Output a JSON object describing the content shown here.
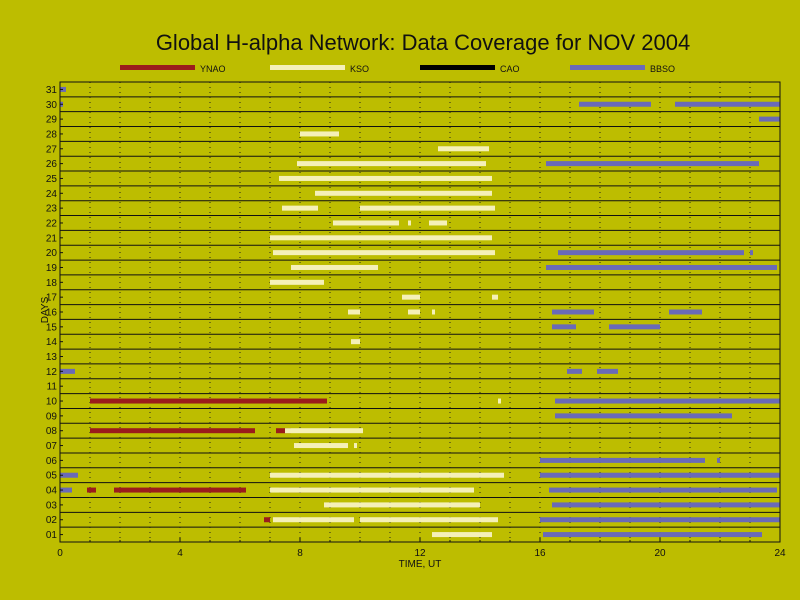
{
  "chart_data": {
    "type": "bar",
    "title": "Global H-alpha Network: Data Coverage for NOV 2004",
    "xlabel": "TIME, UT",
    "ylabel": "DAYS",
    "xlim": [
      0,
      24
    ],
    "ylim": [
      0.5,
      31.5
    ],
    "x_ticks": [
      0,
      4,
      8,
      12,
      16,
      20,
      24
    ],
    "y_ticks": [
      "01",
      "02",
      "03",
      "04",
      "05",
      "06",
      "07",
      "08",
      "09",
      "10",
      "11",
      "12",
      "13",
      "14",
      "15",
      "16",
      "17",
      "18",
      "19",
      "20",
      "21",
      "22",
      "23",
      "24",
      "25",
      "26",
      "27",
      "28",
      "29",
      "30",
      "31"
    ],
    "legend_position": "top",
    "grid": true,
    "series": [
      {
        "name": "YNAO",
        "color": "#9b1c1c",
        "intervals": [
          {
            "day": 2,
            "start": 6.8,
            "end": 7.0
          },
          {
            "day": 4,
            "start": 0.9,
            "end": 1.2
          },
          {
            "day": 4,
            "start": 1.8,
            "end": 6.2
          },
          {
            "day": 4,
            "start": 7.3,
            "end": 8.9
          },
          {
            "day": 8,
            "start": 1.0,
            "end": 6.5
          },
          {
            "day": 8,
            "start": 7.2,
            "end": 7.7
          },
          {
            "day": 10,
            "start": 1.0,
            "end": 8.9
          }
        ]
      },
      {
        "name": "KSO",
        "color": "#f5f0b8",
        "intervals": [
          {
            "day": 1,
            "start": 12.4,
            "end": 14.4
          },
          {
            "day": 2,
            "start": 7.1,
            "end": 9.8
          },
          {
            "day": 2,
            "start": 10.0,
            "end": 14.6
          },
          {
            "day": 3,
            "start": 8.8,
            "end": 14.0
          },
          {
            "day": 4,
            "start": 7.0,
            "end": 13.8
          },
          {
            "day": 5,
            "start": 7.0,
            "end": 14.8
          },
          {
            "day": 7,
            "start": 7.8,
            "end": 9.6
          },
          {
            "day": 7,
            "start": 9.8,
            "end": 9.9
          },
          {
            "day": 8,
            "start": 7.5,
            "end": 10.1
          },
          {
            "day": 10,
            "start": 14.6,
            "end": 14.7
          },
          {
            "day": 14,
            "start": 9.7,
            "end": 10.0
          },
          {
            "day": 16,
            "start": 9.6,
            "end": 10.0
          },
          {
            "day": 16,
            "start": 11.6,
            "end": 12.0
          },
          {
            "day": 16,
            "start": 12.4,
            "end": 12.5
          },
          {
            "day": 17,
            "start": 11.4,
            "end": 12.0
          },
          {
            "day": 17,
            "start": 14.4,
            "end": 14.6
          },
          {
            "day": 18,
            "start": 7.0,
            "end": 8.8
          },
          {
            "day": 19,
            "start": 7.7,
            "end": 10.6
          },
          {
            "day": 20,
            "start": 7.1,
            "end": 14.5
          },
          {
            "day": 21,
            "start": 7.0,
            "end": 14.4
          },
          {
            "day": 22,
            "start": 9.1,
            "end": 11.3
          },
          {
            "day": 22,
            "start": 11.6,
            "end": 11.7
          },
          {
            "day": 22,
            "start": 12.3,
            "end": 12.9
          },
          {
            "day": 23,
            "start": 7.4,
            "end": 8.6
          },
          {
            "day": 23,
            "start": 10.0,
            "end": 14.5
          },
          {
            "day": 24,
            "start": 8.5,
            "end": 14.4
          },
          {
            "day": 25,
            "start": 7.3,
            "end": 14.4
          },
          {
            "day": 26,
            "start": 7.9,
            "end": 14.2
          },
          {
            "day": 27,
            "start": 12.6,
            "end": 14.3
          },
          {
            "day": 28,
            "start": 8.0,
            "end": 9.3
          }
        ]
      },
      {
        "name": "CAO",
        "color": "#000000",
        "intervals": []
      },
      {
        "name": "BBSO",
        "color": "#6a6ab8",
        "intervals": [
          {
            "day": 1,
            "start": 16.1,
            "end": 23.4
          },
          {
            "day": 2,
            "start": 16.0,
            "end": 24.0
          },
          {
            "day": 3,
            "start": 16.4,
            "end": 24.0
          },
          {
            "day": 4,
            "start": 0.0,
            "end": 0.4
          },
          {
            "day": 4,
            "start": 16.3,
            "end": 23.9
          },
          {
            "day": 5,
            "start": 0.0,
            "end": 0.6
          },
          {
            "day": 5,
            "start": 16.0,
            "end": 24.0
          },
          {
            "day": 6,
            "start": 16.0,
            "end": 21.5
          },
          {
            "day": 6,
            "start": 21.9,
            "end": 22.0
          },
          {
            "day": 9,
            "start": 16.5,
            "end": 22.4
          },
          {
            "day": 10,
            "start": 16.5,
            "end": 24.0
          },
          {
            "day": 12,
            "start": 0.0,
            "end": 0.5
          },
          {
            "day": 12,
            "start": 16.9,
            "end": 17.4
          },
          {
            "day": 12,
            "start": 17.9,
            "end": 18.6
          },
          {
            "day": 15,
            "start": 16.4,
            "end": 17.2
          },
          {
            "day": 15,
            "start": 18.3,
            "end": 20.0
          },
          {
            "day": 16,
            "start": 16.4,
            "end": 17.8
          },
          {
            "day": 16,
            "start": 20.3,
            "end": 21.4
          },
          {
            "day": 19,
            "start": 16.2,
            "end": 23.9
          },
          {
            "day": 20,
            "start": 16.6,
            "end": 22.8
          },
          {
            "day": 20,
            "start": 23.0,
            "end": 23.1
          },
          {
            "day": 26,
            "start": 16.2,
            "end": 23.3
          },
          {
            "day": 29,
            "start": 23.3,
            "end": 24.0
          },
          {
            "day": 30,
            "start": 0.0,
            "end": 0.1
          },
          {
            "day": 30,
            "start": 17.3,
            "end": 19.7
          },
          {
            "day": 30,
            "start": 20.5,
            "end": 24.0
          },
          {
            "day": 31,
            "start": 0.0,
            "end": 0.2
          }
        ]
      }
    ]
  }
}
